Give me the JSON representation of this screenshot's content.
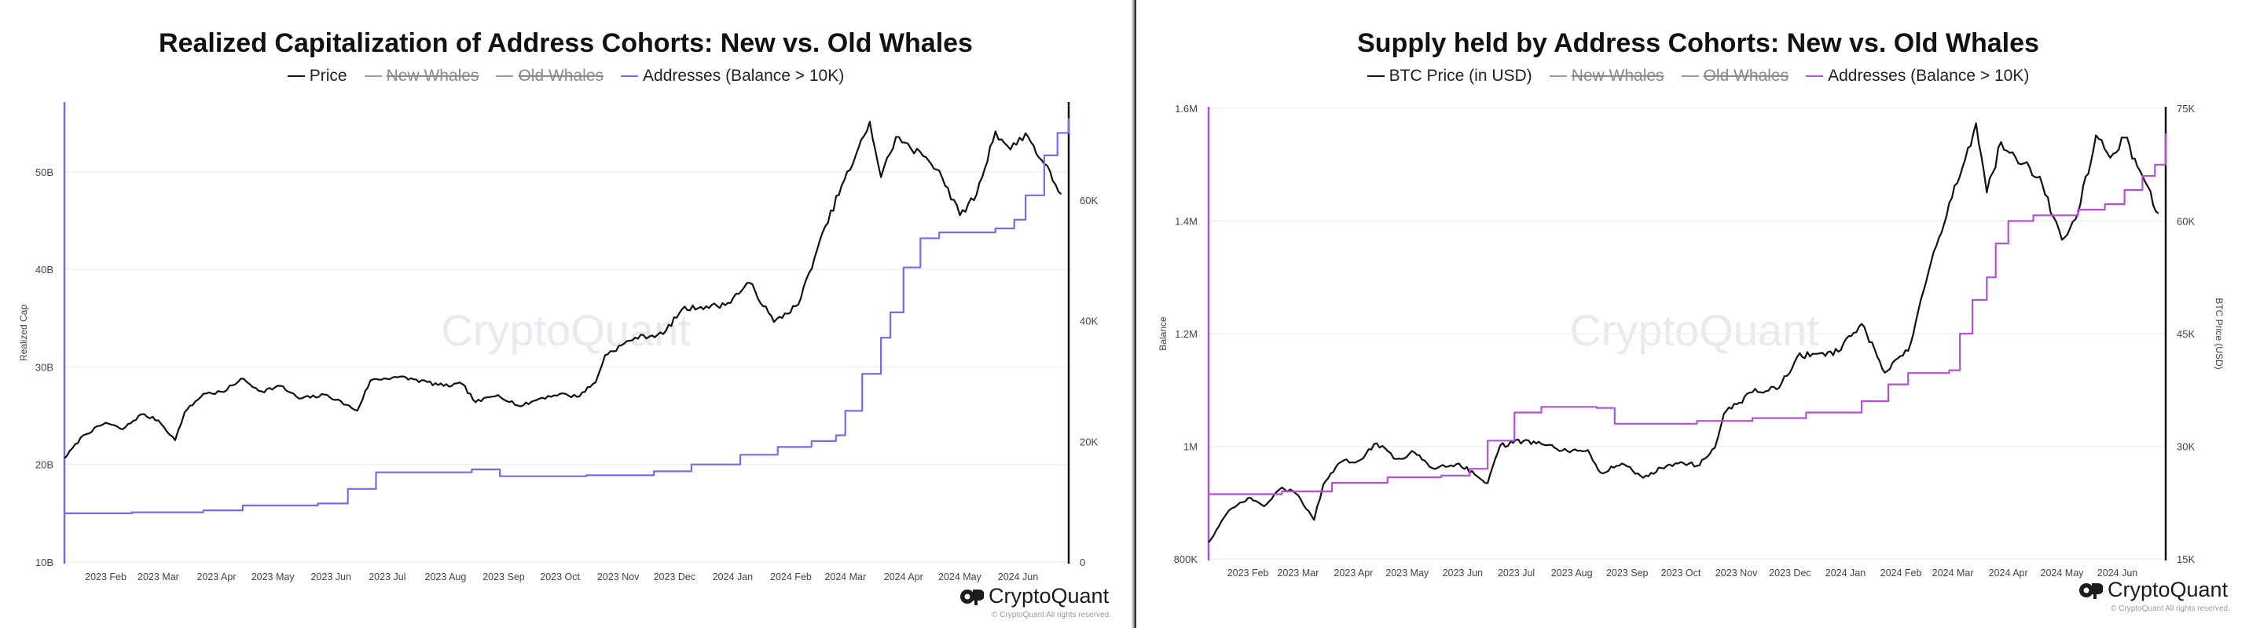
{
  "left": {
    "title": "Realized Capitalization of Address Cohorts: New vs. Old Whales",
    "legend": [
      {
        "label": "Price",
        "color": "#111111",
        "hidden": false
      },
      {
        "label": "New Whales",
        "color": "#9a9a9a",
        "hidden": true
      },
      {
        "label": "Old Whales",
        "color": "#9a9a9a",
        "hidden": true
      },
      {
        "label": "Addresses (Balance > 10K)",
        "color": "#7b68ee",
        "hidden": false
      }
    ],
    "watermark": "CryptoQuant",
    "brand": "CryptoQuant",
    "copyright": "© CryptoQuant All rights reserved."
  },
  "right": {
    "title": "Supply held by Address Cohorts: New vs. Old Whales",
    "legend": [
      {
        "label": "BTC Price (in USD)",
        "color": "#111111",
        "hidden": false
      },
      {
        "label": "New Whales",
        "color": "#9a9a9a",
        "hidden": true
      },
      {
        "label": "Old Whales",
        "color": "#9a9a9a",
        "hidden": true
      },
      {
        "label": "Addresses (Balance > 10K)",
        "color": "#b44fd8",
        "hidden": false
      }
    ],
    "watermark": "CryptoQuant",
    "brand": "CryptoQuant",
    "copyright": "© CryptoQuant All rights reserved."
  },
  "chart_data": [
    {
      "type": "line",
      "title": "Realized Capitalization of Address Cohorts: New vs. Old Whales",
      "xlabel": "",
      "ylabel": "Realized Cap",
      "ylabel_right": "",
      "x_ticks": [
        "2023 Feb",
        "2023 Mar",
        "2023 Apr",
        "2023 May",
        "2023 Jun",
        "2023 Jul",
        "2023 Aug",
        "2023 Sep",
        "2023 Oct",
        "2023 Nov",
        "2023 Dec",
        "2024 Jan",
        "2024 Feb",
        "2024 Mar",
        "2024 Apr",
        "2024 May",
        "2024 Jun"
      ],
      "xlim": [
        "2023-01-10",
        "2024-06-28"
      ],
      "y_left_ticks": [
        "10B",
        "20B",
        "30B",
        "40B",
        "50B"
      ],
      "y_left_tick_values": [
        10,
        20,
        30,
        40,
        50
      ],
      "ylim_left": [
        10,
        57
      ],
      "y_right_ticks": [
        "0",
        "20K",
        "40K",
        "60K"
      ],
      "y_right_tick_values": [
        0,
        20000,
        40000,
        60000
      ],
      "ylim_right": [
        0,
        76000
      ],
      "grid": "horizontal",
      "legend_position": "top-center",
      "series": [
        {
          "name": "Price",
          "axis": "right",
          "color": "#111111",
          "points": [
            [
              "2023-01-10",
              17200
            ],
            [
              "2023-01-20",
              21000
            ],
            [
              "2023-02-01",
              23100
            ],
            [
              "2023-02-10",
              22000
            ],
            [
              "2023-02-20",
              24500
            ],
            [
              "2023-03-01",
              23500
            ],
            [
              "2023-03-10",
              20200
            ],
            [
              "2023-03-15",
              24800
            ],
            [
              "2023-03-25",
              27900
            ],
            [
              "2023-04-05",
              28200
            ],
            [
              "2023-04-14",
              30400
            ],
            [
              "2023-04-25",
              28300
            ],
            [
              "2023-05-05",
              29200
            ],
            [
              "2023-05-15",
              27100
            ],
            [
              "2023-05-30",
              27700
            ],
            [
              "2023-06-15",
              25100
            ],
            [
              "2023-06-22",
              30100
            ],
            [
              "2023-07-05",
              30700
            ],
            [
              "2023-07-15",
              30300
            ],
            [
              "2023-07-31",
              29200
            ],
            [
              "2023-08-10",
              29500
            ],
            [
              "2023-08-17",
              26500
            ],
            [
              "2023-08-29",
              27700
            ],
            [
              "2023-09-10",
              25800
            ],
            [
              "2023-09-20",
              27100
            ],
            [
              "2023-10-01",
              27900
            ],
            [
              "2023-10-10",
              27400
            ],
            [
              "2023-10-20",
              29800
            ],
            [
              "2023-10-25",
              34300
            ],
            [
              "2023-11-10",
              37200
            ],
            [
              "2023-11-25",
              37800
            ],
            [
              "2023-12-05",
              41900
            ],
            [
              "2023-12-15",
              42300
            ],
            [
              "2023-12-28",
              42600
            ],
            [
              "2024-01-10",
              46300
            ],
            [
              "2024-01-23",
              39800
            ],
            [
              "2024-02-05",
              42700
            ],
            [
              "2024-02-15",
              51800
            ],
            [
              "2024-02-28",
              62400
            ],
            [
              "2024-03-05",
              66000
            ],
            [
              "2024-03-14",
              73000
            ],
            [
              "2024-03-20",
              63800
            ],
            [
              "2024-03-28",
              70500
            ],
            [
              "2024-04-05",
              68500
            ],
            [
              "2024-04-13",
              67100
            ],
            [
              "2024-04-20",
              64900
            ],
            [
              "2024-05-01",
              57500
            ],
            [
              "2024-05-10",
              61000
            ],
            [
              "2024-05-20",
              71400
            ],
            [
              "2024-05-28",
              68400
            ],
            [
              "2024-06-05",
              71100
            ],
            [
              "2024-06-15",
              66000
            ],
            [
              "2024-06-24",
              61000
            ]
          ]
        },
        {
          "name": "Addresses (Balance > 10K)",
          "axis": "left",
          "color": "#7b68ee",
          "points": [
            [
              "2023-01-10",
              15.0
            ],
            [
              "2023-02-15",
              15.1
            ],
            [
              "2023-03-25",
              15.3
            ],
            [
              "2023-04-15",
              15.8
            ],
            [
              "2023-05-25",
              16.0
            ],
            [
              "2023-06-10",
              17.5
            ],
            [
              "2023-06-25",
              19.2
            ],
            [
              "2023-08-15",
              19.5
            ],
            [
              "2023-08-30",
              18.8
            ],
            [
              "2023-10-15",
              18.9
            ],
            [
              "2023-11-20",
              19.3
            ],
            [
              "2023-12-10",
              20.0
            ],
            [
              "2024-01-05",
              21.0
            ],
            [
              "2024-01-25",
              21.8
            ],
            [
              "2024-02-12",
              22.4
            ],
            [
              "2024-02-25",
              23.0
            ],
            [
              "2024-03-01",
              25.5
            ],
            [
              "2024-03-10",
              29.3
            ],
            [
              "2024-03-20",
              33.0
            ],
            [
              "2024-03-25",
              35.6
            ],
            [
              "2024-04-01",
              40.2
            ],
            [
              "2024-04-10",
              43.2
            ],
            [
              "2024-04-20",
              43.8
            ],
            [
              "2024-05-20",
              44.2
            ],
            [
              "2024-05-30",
              45.1
            ],
            [
              "2024-06-05",
              47.6
            ],
            [
              "2024-06-15",
              51.7
            ],
            [
              "2024-06-22",
              54.0
            ],
            [
              "2024-06-28",
              55.5
            ]
          ]
        }
      ]
    },
    {
      "type": "line",
      "title": "Supply held by Address Cohorts: New vs. Old Whales",
      "xlabel": "",
      "ylabel": "Balance",
      "ylabel_right": "BTC Price (USD)",
      "x_ticks": [
        "2023 Feb",
        "2023 Mar",
        "2023 Apr",
        "2023 May",
        "2023 Jun",
        "2023 Jul",
        "2023 Aug",
        "2023 Sep",
        "2023 Oct",
        "2023 Nov",
        "2023 Dec",
        "2024 Jan",
        "2024 Feb",
        "2024 Mar",
        "2024 Apr",
        "2024 May",
        "2024 Jun"
      ],
      "xlim": [
        "2023-01-10",
        "2024-06-28"
      ],
      "y_left_ticks": [
        "800K",
        "1M",
        "1.2M",
        "1.4M",
        "1.6M"
      ],
      "y_left_tick_values": [
        800000,
        1000000,
        1200000,
        1400000,
        1600000
      ],
      "ylim_left": [
        800000,
        1600000
      ],
      "y_right_ticks": [
        "15K",
        "30K",
        "45K",
        "60K",
        "75K"
      ],
      "y_right_tick_values": [
        15000,
        30000,
        45000,
        60000,
        75000
      ],
      "ylim_right": [
        15000,
        75000
      ],
      "grid": "horizontal",
      "legend_position": "top-center",
      "series": [
        {
          "name": "BTC Price (in USD)",
          "axis": "right",
          "color": "#111111",
          "points": [
            [
              "2023-01-10",
              17200
            ],
            [
              "2023-01-20",
              21000
            ],
            [
              "2023-02-01",
              23100
            ],
            [
              "2023-02-10",
              22000
            ],
            [
              "2023-02-20",
              24500
            ],
            [
              "2023-03-01",
              23500
            ],
            [
              "2023-03-10",
              20200
            ],
            [
              "2023-03-15",
              24800
            ],
            [
              "2023-03-25",
              27900
            ],
            [
              "2023-04-05",
              28200
            ],
            [
              "2023-04-14",
              30400
            ],
            [
              "2023-04-25",
              28300
            ],
            [
              "2023-05-05",
              29200
            ],
            [
              "2023-05-15",
              27100
            ],
            [
              "2023-05-30",
              27700
            ],
            [
              "2023-06-15",
              25100
            ],
            [
              "2023-06-22",
              30100
            ],
            [
              "2023-07-05",
              30700
            ],
            [
              "2023-07-15",
              30300
            ],
            [
              "2023-07-31",
              29200
            ],
            [
              "2023-08-10",
              29500
            ],
            [
              "2023-08-17",
              26500
            ],
            [
              "2023-08-29",
              27700
            ],
            [
              "2023-09-10",
              25800
            ],
            [
              "2023-09-20",
              27100
            ],
            [
              "2023-10-01",
              27900
            ],
            [
              "2023-10-10",
              27400
            ],
            [
              "2023-10-20",
              29800
            ],
            [
              "2023-10-25",
              34300
            ],
            [
              "2023-11-10",
              37200
            ],
            [
              "2023-11-25",
              37800
            ],
            [
              "2023-12-05",
              41900
            ],
            [
              "2023-12-15",
              42300
            ],
            [
              "2023-12-28",
              42600
            ],
            [
              "2024-01-10",
              46300
            ],
            [
              "2024-01-23",
              39800
            ],
            [
              "2024-02-05",
              42700
            ],
            [
              "2024-02-15",
              51800
            ],
            [
              "2024-02-28",
              62400
            ],
            [
              "2024-03-05",
              66000
            ],
            [
              "2024-03-14",
              73000
            ],
            [
              "2024-03-20",
              63800
            ],
            [
              "2024-03-28",
              70500
            ],
            [
              "2024-04-05",
              68500
            ],
            [
              "2024-04-13",
              67100
            ],
            [
              "2024-04-20",
              64900
            ],
            [
              "2024-05-01",
              57500
            ],
            [
              "2024-05-10",
              61000
            ],
            [
              "2024-05-20",
              71400
            ],
            [
              "2024-05-28",
              68400
            ],
            [
              "2024-06-05",
              71100
            ],
            [
              "2024-06-15",
              66000
            ],
            [
              "2024-06-24",
              61000
            ]
          ]
        },
        {
          "name": "Addresses (Balance > 10K)",
          "axis": "left",
          "color": "#b44fd8",
          "points": [
            [
              "2023-01-10",
              915000
            ],
            [
              "2023-02-20",
              920000
            ],
            [
              "2023-03-20",
              935000
            ],
            [
              "2023-04-20",
              945000
            ],
            [
              "2023-05-20",
              948000
            ],
            [
              "2023-06-05",
              960000
            ],
            [
              "2023-06-15",
              1010000
            ],
            [
              "2023-06-30",
              1060000
            ],
            [
              "2023-07-15",
              1070000
            ],
            [
              "2023-08-15",
              1068000
            ],
            [
              "2023-08-25",
              1040000
            ],
            [
              "2023-10-10",
              1045000
            ],
            [
              "2023-11-10",
              1050000
            ],
            [
              "2023-12-10",
              1060000
            ],
            [
              "2024-01-10",
              1080000
            ],
            [
              "2024-01-25",
              1110000
            ],
            [
              "2024-02-05",
              1130000
            ],
            [
              "2024-02-28",
              1135000
            ],
            [
              "2024-03-05",
              1200000
            ],
            [
              "2024-03-12",
              1260000
            ],
            [
              "2024-03-20",
              1300000
            ],
            [
              "2024-03-25",
              1360000
            ],
            [
              "2024-04-01",
              1400000
            ],
            [
              "2024-04-15",
              1410000
            ],
            [
              "2024-05-10",
              1420000
            ],
            [
              "2024-05-25",
              1430000
            ],
            [
              "2024-06-05",
              1455000
            ],
            [
              "2024-06-15",
              1480000
            ],
            [
              "2024-06-22",
              1500000
            ],
            [
              "2024-06-28",
              1555000
            ]
          ]
        }
      ]
    }
  ]
}
